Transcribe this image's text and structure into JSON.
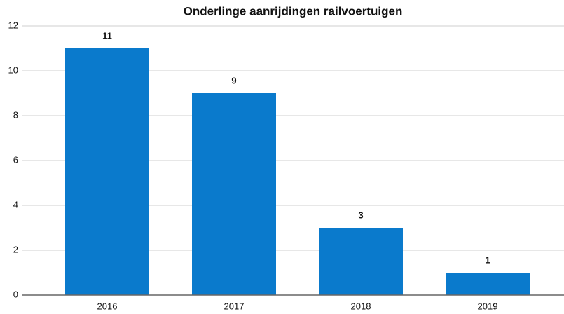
{
  "chart_data": {
    "type": "bar",
    "title": "Onderlinge aanrijdingen railvoertuigen",
    "categories": [
      "2016",
      "2017",
      "2018",
      "2019"
    ],
    "values": [
      11,
      9,
      3,
      1
    ],
    "color": "#0a7acc",
    "ylim": [
      0,
      12
    ],
    "yticks": [
      0,
      2,
      4,
      6,
      8,
      10,
      12
    ],
    "grid": true
  }
}
